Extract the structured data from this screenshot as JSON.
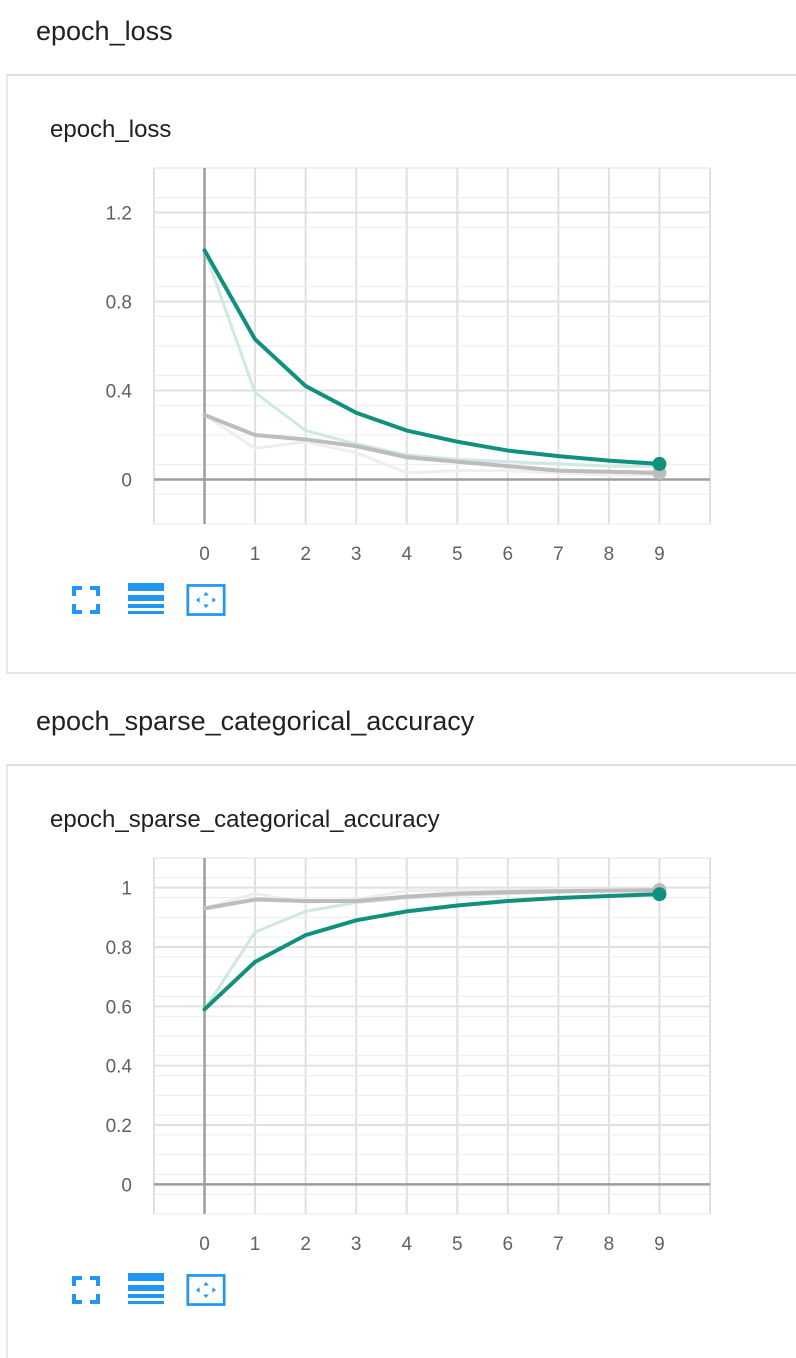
{
  "sections": [
    {
      "header": "epoch_loss",
      "chart_title": "epoch_loss"
    },
    {
      "header": "epoch_sparse_categorical_accuracy",
      "chart_title": "epoch_sparse_categorical_accuracy"
    }
  ],
  "toolbar_icons": [
    "fullscreen-icon",
    "toggle-log-scale-icon",
    "fit-domain-icon"
  ],
  "colors": {
    "teal": "#12907e",
    "teal_light": "#cfe8e3",
    "gray": "#bdbdbd",
    "gray_light": "#eeeeee",
    "grid": "#e0e0e0",
    "axis": "#9e9e9e",
    "icon_blue": "#2196f3"
  },
  "chart_data": [
    {
      "type": "line",
      "title": "epoch_loss",
      "x": [
        0,
        1,
        2,
        3,
        4,
        5,
        6,
        7,
        8,
        9
      ],
      "xlim": [
        -1,
        10
      ],
      "ylim": [
        -0.2,
        1.4
      ],
      "yticks": [
        0,
        0.4,
        0.8,
        1.2
      ],
      "ytick_labels": [
        "0",
        "0.4",
        "0.8",
        "1.2"
      ],
      "xticks": [
        0,
        1,
        2,
        3,
        4,
        5,
        6,
        7,
        8,
        9
      ],
      "grid": true,
      "series": [
        {
          "role": "raw",
          "color": "#cfe8e3",
          "values": [
            1.03,
            0.39,
            0.22,
            0.16,
            0.11,
            0.09,
            0.08,
            0.07,
            0.06,
            0.06
          ]
        },
        {
          "role": "raw",
          "color": "#eeeeee",
          "values": [
            0.29,
            0.14,
            0.17,
            0.12,
            0.03,
            0.04,
            0.04,
            0.03,
            0.02,
            0.02
          ]
        },
        {
          "role": "smoothed",
          "color": "#bdbdbd",
          "values": [
            0.29,
            0.2,
            0.18,
            0.15,
            0.1,
            0.08,
            0.06,
            0.04,
            0.035,
            0.03
          ],
          "end_marker": true
        },
        {
          "role": "smoothed",
          "color": "#12907e",
          "values": [
            1.03,
            0.63,
            0.42,
            0.3,
            0.22,
            0.17,
            0.13,
            0.105,
            0.085,
            0.07
          ],
          "end_marker": true
        }
      ]
    },
    {
      "type": "line",
      "title": "epoch_sparse_categorical_accuracy",
      "x": [
        0,
        1,
        2,
        3,
        4,
        5,
        6,
        7,
        8,
        9
      ],
      "xlim": [
        -1,
        10
      ],
      "ylim": [
        -0.1,
        1.1
      ],
      "yticks": [
        0,
        0.2,
        0.4,
        0.6,
        0.8,
        1
      ],
      "ytick_labels": [
        "0",
        "0.2",
        "0.4",
        "0.6",
        "0.8",
        "1"
      ],
      "xticks": [
        0,
        1,
        2,
        3,
        4,
        5,
        6,
        7,
        8,
        9
      ],
      "grid": true,
      "series": [
        {
          "role": "raw",
          "color": "#cfe8e3",
          "values": [
            0.59,
            0.85,
            0.92,
            0.95,
            0.965,
            0.975,
            0.98,
            0.985,
            0.99,
            0.99
          ]
        },
        {
          "role": "raw",
          "color": "#eeeeee",
          "values": [
            0.93,
            0.98,
            0.95,
            0.96,
            0.99,
            0.99,
            0.99,
            0.995,
            0.995,
            0.995
          ]
        },
        {
          "role": "smoothed",
          "color": "#bdbdbd",
          "values": [
            0.93,
            0.96,
            0.955,
            0.955,
            0.97,
            0.98,
            0.985,
            0.988,
            0.99,
            0.992
          ],
          "end_marker": true
        },
        {
          "role": "smoothed",
          "color": "#12907e",
          "values": [
            0.59,
            0.75,
            0.84,
            0.89,
            0.92,
            0.94,
            0.955,
            0.965,
            0.972,
            0.978
          ],
          "end_marker": true
        }
      ]
    }
  ]
}
